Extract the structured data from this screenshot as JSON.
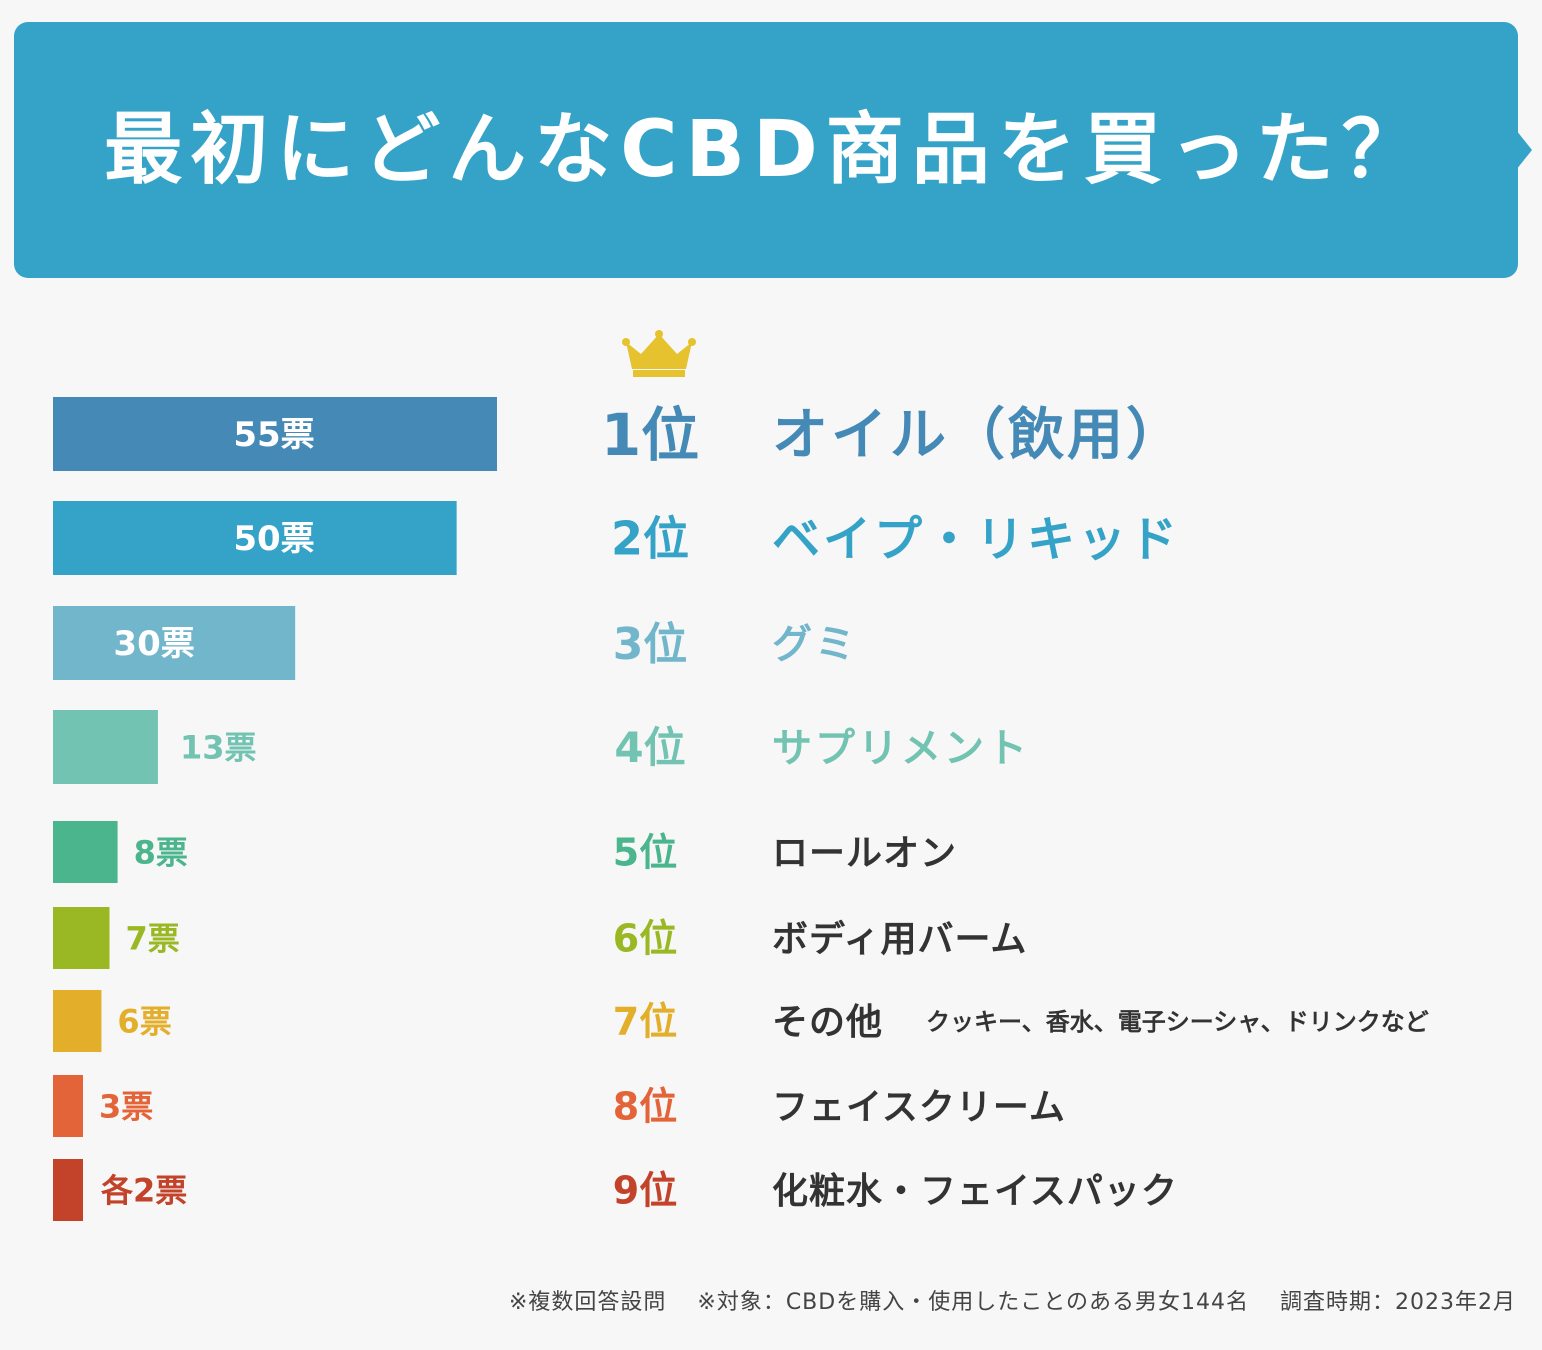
{
  "header": {
    "title": "最初にどんなCBD商品を買った？"
  },
  "icons": {
    "crown": "crown-icon"
  },
  "chart_data": {
    "type": "bar",
    "title": "最初にどんなCBD商品を買った？",
    "orientation": "horizontal",
    "unit": "票",
    "xlim": [
      0,
      55
    ],
    "categories": [
      "オイル（飲用）",
      "ベイプ・リキッド",
      "グミ",
      "サプリメント",
      "ロールオン",
      "ボディ用バーム",
      "その他",
      "フェイスクリーム",
      "化粧水・フェイスパック"
    ],
    "ranks": [
      "1位",
      "2位",
      "3位",
      "4位",
      "5位",
      "6位",
      "7位",
      "8位",
      "9位"
    ],
    "values": [
      55,
      50,
      30,
      13,
      8,
      7,
      6,
      3,
      2
    ],
    "value_labels": [
      "55票",
      "50票",
      "30票",
      "13票",
      "8票",
      "7票",
      "6票",
      "3票",
      "各2票"
    ],
    "colors": [
      "#458ab6",
      "#35a3c8",
      "#72b6cc",
      "#72c3b1",
      "#4bb58e",
      "#9ab823",
      "#e3ae2a",
      "#e4643a",
      "#c2432a"
    ],
    "category_colors": [
      "#458ab6",
      "#35a3c8",
      "#72b6cc",
      "#72c3b1",
      "#333333",
      "#333333",
      "#333333",
      "#333333",
      "#333333"
    ],
    "annotations": [
      {
        "category": "その他",
        "text": "クッキー、香水、電子シーシャ、ドリンクなど"
      }
    ]
  },
  "footer": {
    "note1": "※複数回答設問",
    "note2": "※対象：CBDを購入・使用したことのある男女144名",
    "note3": "調査時期：2023年2月"
  }
}
